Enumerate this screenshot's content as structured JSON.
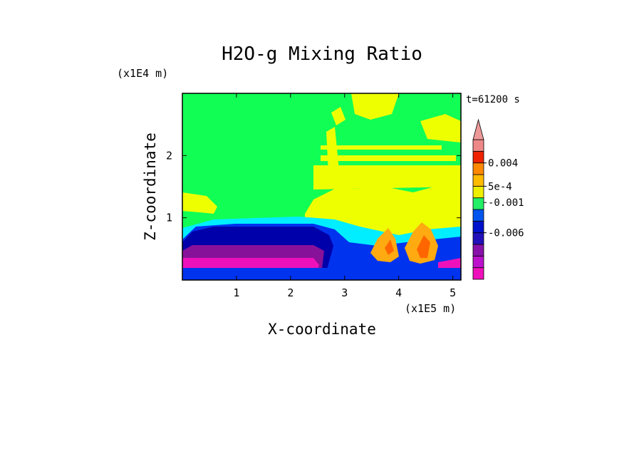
{
  "chart_data": {
    "type": "heatmap",
    "title": "H2O-g Mixing Ratio",
    "xlabel": "X-coordinate",
    "ylabel": "Z-coordinate",
    "x_multiplier": "(x1E5 m)",
    "y_multiplier": "(x1E4 m)",
    "time_label": "t=61200 s",
    "xlim": [
      0,
      5.15
    ],
    "ylim": [
      0,
      3.0
    ],
    "x_ticks": [
      {
        "value": 1,
        "label": "1"
      },
      {
        "value": 2,
        "label": "2"
      },
      {
        "value": 3,
        "label": "3"
      },
      {
        "value": 4,
        "label": "4"
      },
      {
        "value": 5,
        "label": "5"
      }
    ],
    "y_ticks": [
      {
        "value": 1,
        "label": "1"
      },
      {
        "value": 2,
        "label": "2"
      }
    ],
    "colorbar": {
      "levels": [
        {
          "color": "#ee11bb"
        },
        {
          "color": "#bb11cc"
        },
        {
          "color": "#8811aa"
        },
        {
          "color": "#2211bb"
        },
        {
          "color": "#0011cc"
        },
        {
          "color": "#0055ee"
        },
        {
          "color": "#22ee66"
        },
        {
          "color": "#eeee00"
        },
        {
          "color": "#ffbb00"
        },
        {
          "color": "#ff8800"
        },
        {
          "color": "#ee2200"
        },
        {
          "color": "#ee8888"
        }
      ],
      "extend_color": "#ee9999",
      "labels": [
        {
          "text": "0.004",
          "at_level": 10
        },
        {
          "text": "5e-4",
          "at_level": 8
        },
        {
          "text": "-0.001",
          "at_level": 6.6
        },
        {
          "text": "-0.006",
          "at_level": 4
        }
      ]
    },
    "colors": {
      "background": "#11ff55",
      "moist": "#eeff00",
      "cyan": "#00eeff",
      "blue": "#0033ee",
      "navy": "#0000aa",
      "purple": "#881199",
      "magenta": "#ee11bb",
      "orange": "#ffaa11",
      "red": "#ff6600"
    }
  }
}
